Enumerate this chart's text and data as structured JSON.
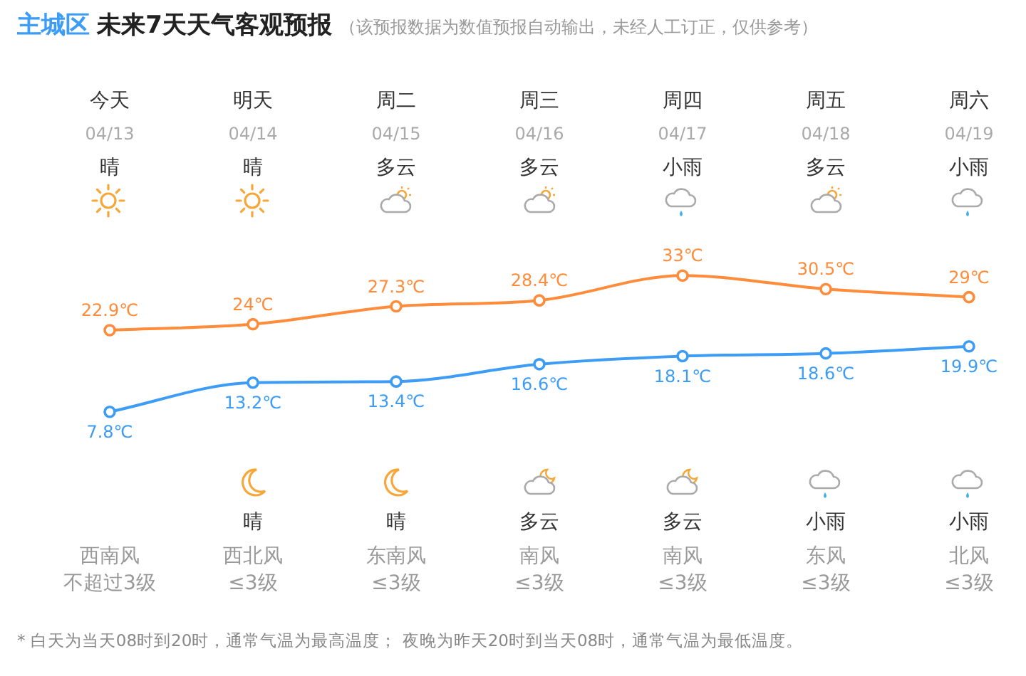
{
  "chart_data": {
    "type": "line",
    "title": "主城区 未来7天天气客观预报",
    "subtitle": "（该预报数据为数值预报自动输出，未经人工订正，仅供参考）",
    "categories": [
      "今天",
      "明天",
      "周二",
      "周三",
      "周四",
      "周五",
      "周六"
    ],
    "series": [
      {
        "color": "#ff8c3a",
        "values": [
          22.9,
          24,
          27.3,
          28.4,
          33,
          30.5,
          29
        ],
        "value_labels": [
          "22.9℃",
          "24℃",
          "27.3℃",
          "28.4℃",
          "33℃",
          "30.5℃",
          "29℃"
        ]
      },
      {
        "color": "#3d9cf5",
        "values": [
          7.8,
          13.2,
          13.4,
          16.6,
          18.1,
          18.6,
          19.9
        ],
        "value_labels": [
          "7.8℃",
          "13.2℃",
          "13.4℃",
          "16.6℃",
          "18.1℃",
          "18.6℃",
          "19.9℃"
        ]
      }
    ],
    "marker": "circle",
    "line_style": "solid",
    "legend": false,
    "grid": false,
    "tick_labels": "x",
    "annotations": [
      "04/13",
      "04/14",
      "04/15",
      "04/16",
      "04/17",
      "04/18",
      "04/19",
      "晴",
      "晴",
      "多云",
      "多云",
      "小雨",
      "多云",
      "小雨",
      "晴",
      "晴",
      "多云",
      "多云",
      "小雨",
      "小雨",
      "西南风",
      "西北风",
      "东南风",
      "南风",
      "南风",
      "东风",
      "北风",
      "不超过3级",
      "≤3级",
      "≤3级",
      "≤3级",
      "≤3级",
      "≤3级",
      "≤3级",
      "* 白天为当天08时到20时，通常气温为最高温度； 夜晚为昨天20时到当天08时，通常气温为最低温度。"
    ]
  }
}
